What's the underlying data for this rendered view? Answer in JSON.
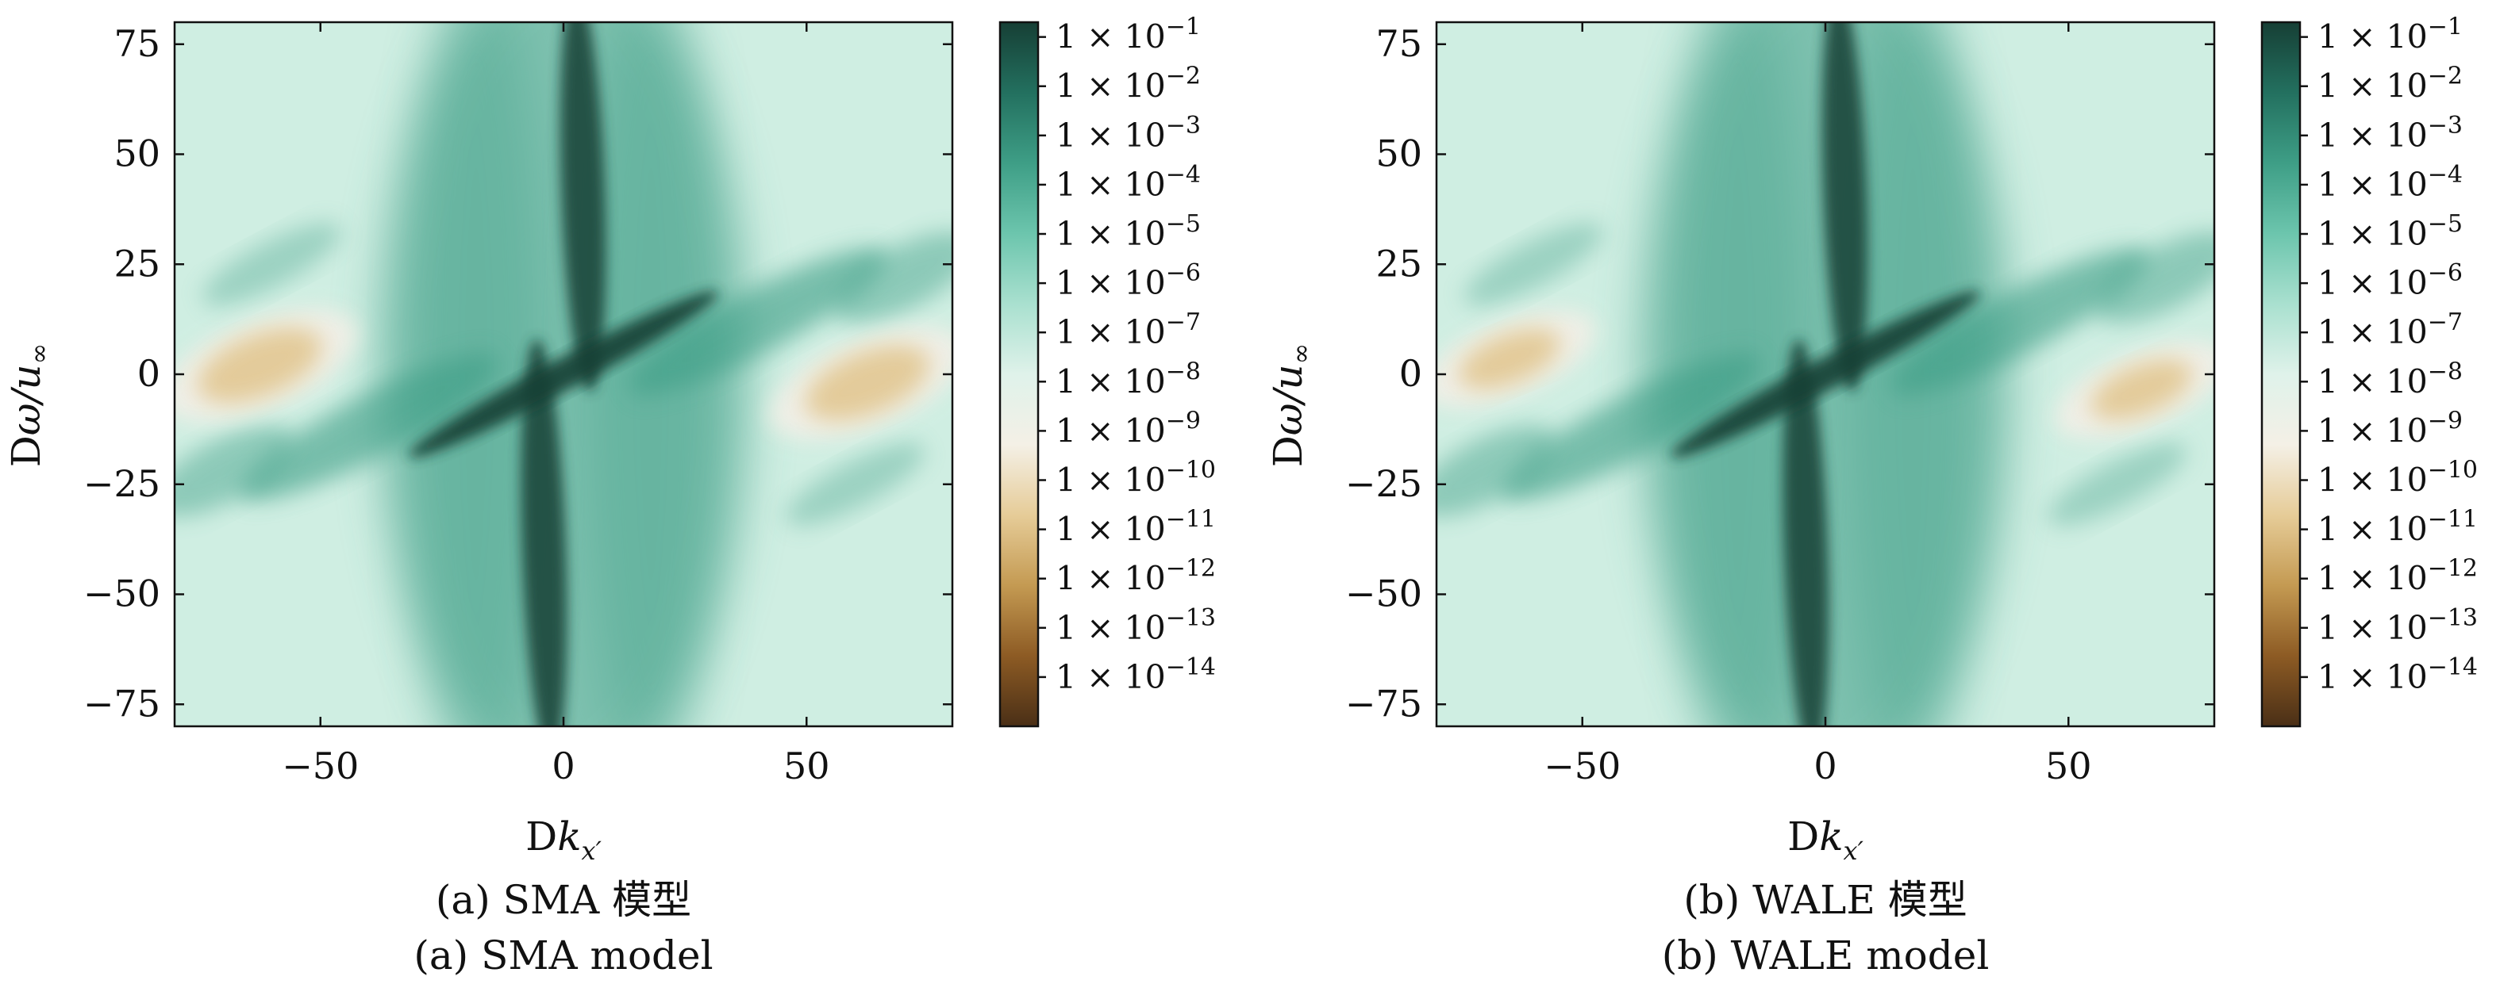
{
  "figure": {
    "panels": [
      {
        "caption_cn": "(a) SMA 模型",
        "caption_en": "(a) SMA model",
        "xlabel_main": "D",
        "xlabel_var": "k",
        "xlabel_sub": "x′",
        "ylabel_main": "D",
        "ylabel_var": "ω/u",
        "ylabel_sub": "∞"
      },
      {
        "caption_cn": "(b) WALE 模型",
        "caption_en": "(b) WALE model",
        "xlabel_main": "D",
        "xlabel_var": "k",
        "xlabel_sub": "x′",
        "ylabel_main": "D",
        "ylabel_var": "ω/u",
        "ylabel_sub": "∞"
      }
    ]
  },
  "colors": {
    "cmap_stops": [
      "#4a2f16",
      "#8d5b24",
      "#c49a52",
      "#e6cc98",
      "#f4f0e6",
      "#dff2ea",
      "#a9e0cf",
      "#6cc5ad",
      "#3e9e86",
      "#23705f",
      "#163f35"
    ],
    "background": "#cfeee2",
    "ridge": "#163f35",
    "mid": "#3e9e86",
    "sand": "#e2c893"
  },
  "chart_data": [
    {
      "type": "heatmap",
      "title": "",
      "xlabel": "Dk_x′",
      "ylabel": "Dω/u_∞",
      "xlim": [
        -80,
        80
      ],
      "ylim": [
        -80,
        80
      ],
      "xticks": [
        -50,
        0,
        50
      ],
      "xtick_labels": [
        "−50",
        "0",
        "50"
      ],
      "yticks": [
        75,
        50,
        25,
        0,
        -25,
        -50,
        -75
      ],
      "ytick_labels": [
        "75",
        "50",
        "25",
        "0",
        "−25",
        "−50",
        "−75"
      ],
      "colorbar": {
        "scale": "log",
        "exponents": [
          -1,
          -2,
          -3,
          -4,
          -5,
          -6,
          -7,
          -8,
          -9,
          -10,
          -11,
          -12,
          -13,
          -14
        ],
        "tick_labels": [
          "1 × 10",
          "1 × 10",
          "1 × 10",
          "1 × 10",
          "1 × 10",
          "1 × 10",
          "1 × 10",
          "1 × 10",
          "1 × 10",
          "1 × 10",
          "1 × 10",
          "1 × 10",
          "1 × 10",
          "1 × 10"
        ],
        "tick_exponent_labels": [
          "−1",
          "−2",
          "−3",
          "−4",
          "−5",
          "−6",
          "−7",
          "−8",
          "−9",
          "−10",
          "−11",
          "−12",
          "−13",
          "−14"
        ],
        "range_exponent": [
          -15,
          -0.7
        ]
      },
      "features": {
        "vertical_ridge_center_x": 0,
        "diagonal_ridge": "passes through (0,0) from lower-left to upper-right",
        "low_value_regions": [
          {
            "x": [
              -80,
              -45
            ],
            "y": [
              -8,
              12
            ]
          },
          {
            "x": [
              45,
              80
            ],
            "y": [
              -12,
              8
            ]
          }
        ]
      }
    },
    {
      "type": "heatmap",
      "title": "",
      "xlabel": "Dk_x′",
      "ylabel": "Dω/u_∞",
      "xlim": [
        -80,
        80
      ],
      "ylim": [
        -80,
        80
      ],
      "xticks": [
        -50,
        0,
        50
      ],
      "xtick_labels": [
        "−50",
        "0",
        "50"
      ],
      "yticks": [
        75,
        50,
        25,
        0,
        -25,
        -50,
        -75
      ],
      "ytick_labels": [
        "75",
        "50",
        "25",
        "0",
        "−25",
        "−50",
        "−75"
      ],
      "colorbar": {
        "scale": "log",
        "exponents": [
          -1,
          -2,
          -3,
          -4,
          -5,
          -6,
          -7,
          -8,
          -9,
          -10,
          -11,
          -12,
          -13,
          -14
        ],
        "tick_labels": [
          "1 × 10",
          "1 × 10",
          "1 × 10",
          "1 × 10",
          "1 × 10",
          "1 × 10",
          "1 × 10",
          "1 × 10",
          "1 × 10",
          "1 × 10",
          "1 × 10",
          "1 × 10",
          "1 × 10",
          "1 × 10"
        ],
        "tick_exponent_labels": [
          "−1",
          "−2",
          "−3",
          "−4",
          "−5",
          "−6",
          "−7",
          "−8",
          "−9",
          "−10",
          "−11",
          "−12",
          "−13",
          "−14"
        ],
        "range_exponent": [
          -15,
          -0.7
        ]
      },
      "features": {
        "vertical_ridge_center_x": 0,
        "diagonal_ridge": "passes through (0,0) from lower-left to upper-right",
        "low_value_regions": [
          {
            "x": [
              -80,
              -50
            ],
            "y": [
              -5,
              12
            ]
          },
          {
            "x": [
              50,
              80
            ],
            "y": [
              -12,
              5
            ]
          }
        ]
      }
    }
  ]
}
